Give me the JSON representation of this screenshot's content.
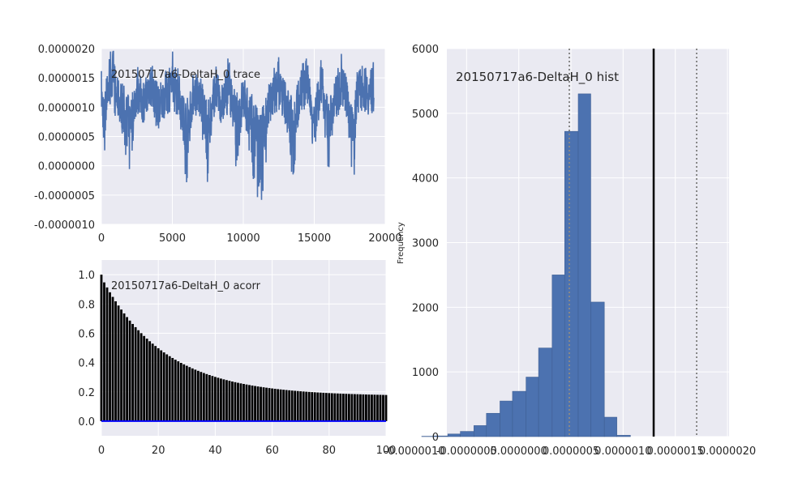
{
  "chart_data": [
    {
      "type": "line",
      "name": "trace",
      "title": "20150717a6-DeltaH_0 trace",
      "xlim": [
        0,
        20000
      ],
      "ylim": [
        -1e-06,
        2e-06
      ],
      "x_ticks": [
        "0",
        "5000",
        "10000",
        "15000",
        "20000"
      ],
      "y_ticks": [
        "-0.0000010",
        "-0.0000005",
        "0.0000000",
        "0.0000005",
        "0.0000010",
        "0.0000015",
        "0.0000020"
      ],
      "n_samples": 19200,
      "color": "#4c72b0",
      "series": [
        {
          "x": [
            0,
            200,
            400,
            600,
            800,
            1000,
            1500,
            2000,
            2500,
            3000,
            3500,
            4000,
            4500,
            5000,
            5500,
            6000,
            6500,
            7000,
            7500,
            8000,
            8500,
            9000,
            9500,
            10000,
            10500,
            11000,
            11200,
            11500,
            12000,
            12500,
            13000,
            13500,
            14000,
            14500,
            15000,
            15500,
            16000,
            16500,
            17000,
            17500,
            17800,
            18000,
            18500,
            19000,
            19200
          ],
          "y": [
            1.3e-06,
            2e-07,
            1.5e-06,
            1.6e-06,
            1.9e-06,
            1.2e-06,
            9e-07,
            1e-07,
            1.4e-06,
            1e-06,
            1.6e-06,
            8e-07,
            1.3e-06,
            1.7e-06,
            1.2e-06,
            0.0,
            1.4e-06,
            1.1e-06,
            -1e-07,
            1.5e-06,
            9e-07,
            1.6e-06,
            3e-07,
            1.2e-06,
            5e-07,
            -4e-07,
            -6e-07,
            2e-07,
            1.2e-06,
            1.6e-06,
            1e-06,
            0.0,
            1.4e-06,
            1.7e-06,
            4e-07,
            1.6e-06,
            -1e-07,
            1.2e-06,
            1.7e-06,
            7e-07,
            -3e-07,
            1.5e-06,
            1.6e-06,
            1.3e-06,
            1.6e-06
          ]
        }
      ]
    },
    {
      "type": "bar",
      "name": "acorr",
      "title": "20150717a6-DeltaH_0 acorr",
      "xlim": [
        0,
        100
      ],
      "ylim": [
        -0.1,
        1.1
      ],
      "x_ticks": [
        "0",
        "20",
        "40",
        "60",
        "80",
        "100"
      ],
      "y_ticks": [
        "0.0",
        "0.2",
        "0.4",
        "0.6",
        "0.8",
        "1.0"
      ],
      "lags": 100,
      "values_formula": "approx 0.17 + 0.83*exp(-lag/22)",
      "lag_samples": [
        [
          0,
          1.0
        ],
        [
          1,
          0.93
        ],
        [
          5,
          0.8
        ],
        [
          10,
          0.71
        ],
        [
          20,
          0.56
        ],
        [
          40,
          0.43
        ],
        [
          60,
          0.3
        ],
        [
          80,
          0.24
        ],
        [
          100,
          0.17
        ]
      ],
      "bar_color": "#000000",
      "baseline_color": "#0000ff"
    },
    {
      "type": "bar",
      "name": "hist",
      "title": "20150717a6-DeltaH_0 hist",
      "ylabel": "Frequency",
      "xlim": [
        -1e-06,
        2e-06
      ],
      "ylim": [
        0,
        6000
      ],
      "x_ticks": [
        "-0.0000010",
        "-0.0000005",
        "0.0000000",
        "0.0000005",
        "0.0000010",
        "0.0000015",
        "0.0000020"
      ],
      "y_ticks": [
        "0",
        "1000",
        "2000",
        "3000",
        "4000",
        "5000",
        "6000"
      ],
      "bins": [
        {
          "x0": -9.3e-07,
          "x1": -8.1e-07,
          "count": 5
        },
        {
          "x0": -8.1e-07,
          "x1": -6.8e-07,
          "count": 10
        },
        {
          "x0": -6.8e-07,
          "x1": -5.6e-07,
          "count": 40
        },
        {
          "x0": -5.6e-07,
          "x1": -4.3e-07,
          "count": 80
        },
        {
          "x0": -4.3e-07,
          "x1": -3.1e-07,
          "count": 170
        },
        {
          "x0": -3.1e-07,
          "x1": -1.8e-07,
          "count": 360
        },
        {
          "x0": -1.8e-07,
          "x1": -6e-08,
          "count": 550
        },
        {
          "x0": -6e-08,
          "x1": 7e-08,
          "count": 700
        },
        {
          "x0": 7e-08,
          "x1": 1.9e-07,
          "count": 920
        },
        {
          "x0": 1.9e-07,
          "x1": 3.2e-07,
          "count": 1370
        },
        {
          "x0": 3.2e-07,
          "x1": 4.4e-07,
          "count": 2500
        },
        {
          "x0": 4.4e-07,
          "x1": 5.7e-07,
          "count": 4720
        },
        {
          "x0": 5.7e-07,
          "x1": 6.9e-07,
          "count": 5300
        },
        {
          "x0": 6.9e-07,
          "x1": 8.2e-07,
          "count": 2080
        },
        {
          "x0": 8.2e-07,
          "x1": 9.4e-07,
          "count": 300
        },
        {
          "x0": 9.4e-07,
          "x1": 1.07e-06,
          "count": 20
        }
      ],
      "vlines": [
        {
          "x": 9.6e-07,
          "style": "solid",
          "color": "#000000"
        },
        {
          "x": -1.5e-09,
          "style": "dotted",
          "color": "#888888"
        },
        {
          "x": 1.5e-06,
          "style": "dotted",
          "color": "#888888"
        }
      ],
      "bar_color": "#4c72b0"
    }
  ]
}
